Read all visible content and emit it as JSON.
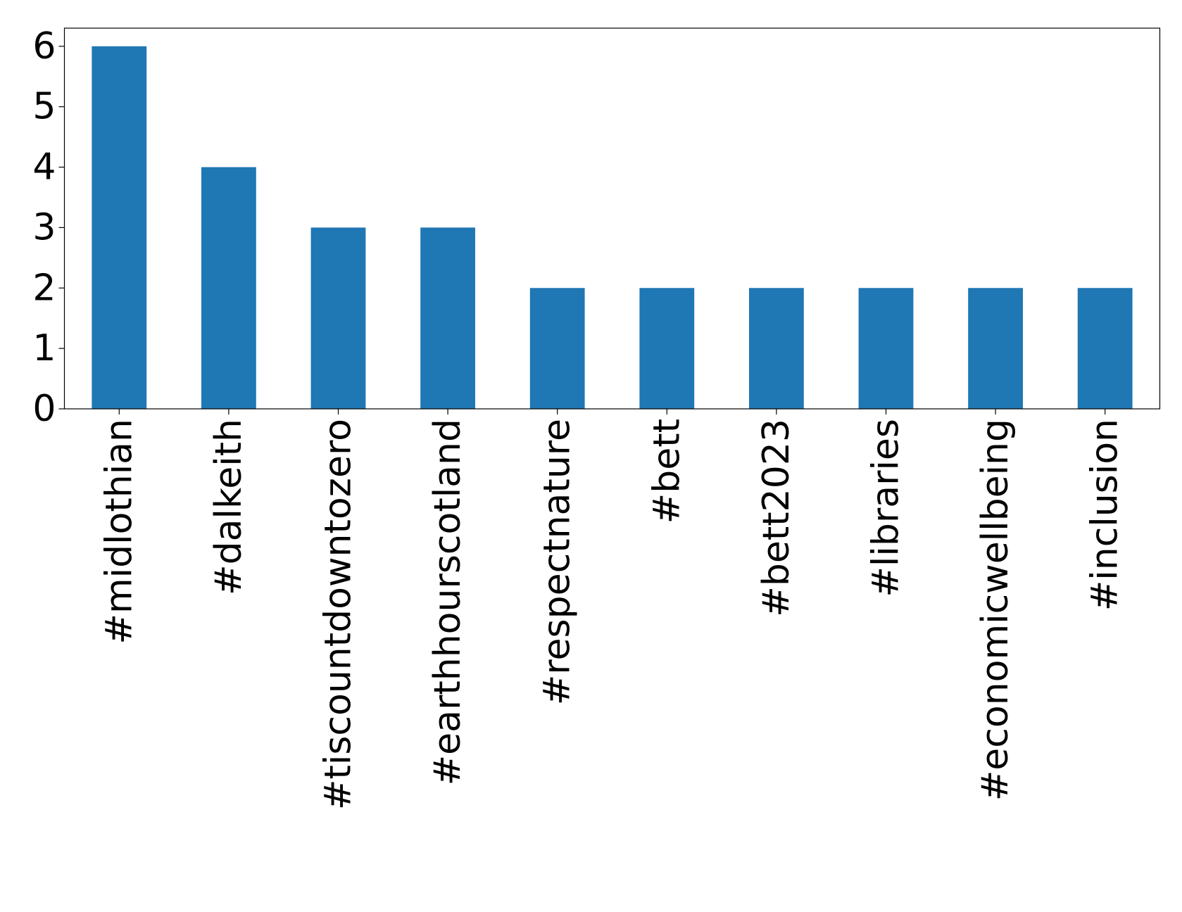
{
  "chart_data": {
    "type": "bar",
    "categories": [
      "#midlothian",
      "#dalkeith",
      "#tiscountdowntozero",
      "#earthhourscotland",
      "#respectnature",
      "#bett",
      "#bett2023",
      "#libraries",
      "#economicwellbeing",
      "#inclusion"
    ],
    "values": [
      6,
      4,
      3,
      3,
      2,
      2,
      2,
      2,
      2,
      2
    ],
    "color": "#1f77b4",
    "ylim": [
      0,
      6.3
    ],
    "yticks": [
      0,
      1,
      2,
      3,
      4,
      5,
      6
    ],
    "grid": false
  }
}
